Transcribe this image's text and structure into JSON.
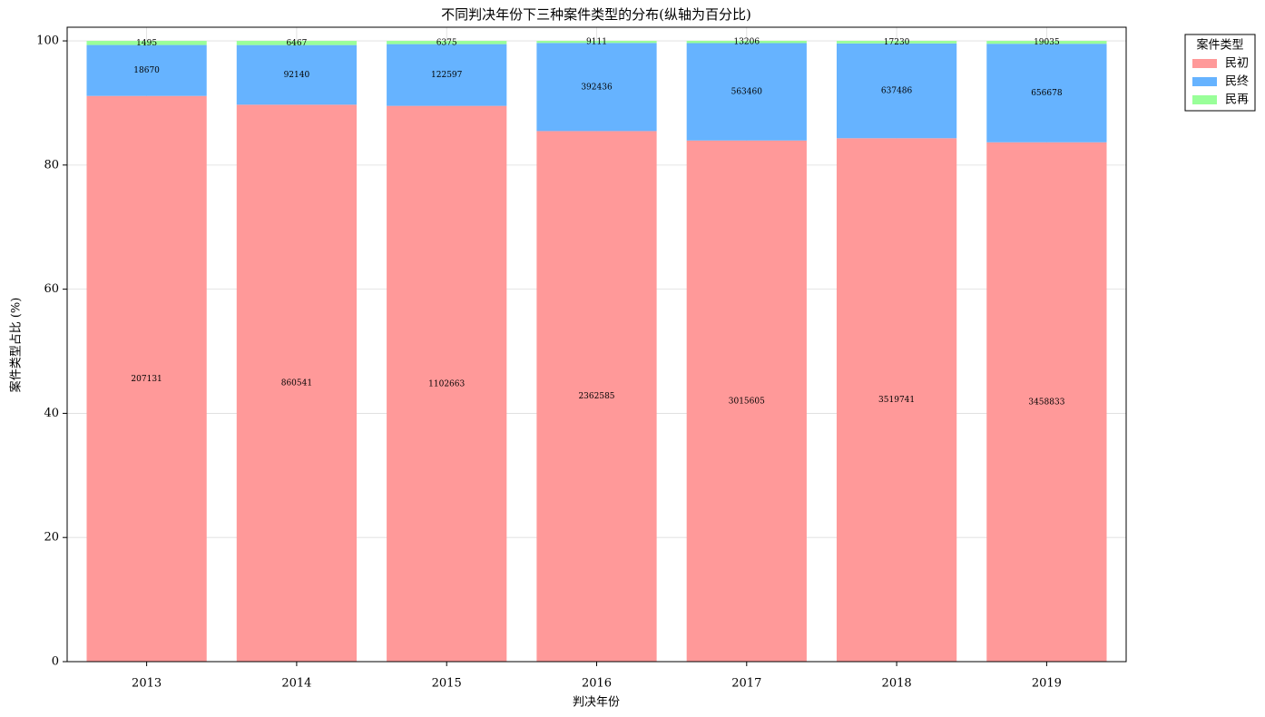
{
  "chart_data": {
    "type": "stacked_bar",
    "title": "不同判决年份下三种案件类型的分布(纵轴为百分比)",
    "xlabel": "判决年份",
    "ylabel": "案件类型占比 (%)",
    "categories": [
      "2013",
      "2014",
      "2015",
      "2016",
      "2017",
      "2018",
      "2019"
    ],
    "series": [
      {
        "name": "民初",
        "color": "#ff9999",
        "values": [
          91.13,
          89.72,
          89.53,
          85.47,
          83.95,
          84.32,
          83.66
        ],
        "counts": [
          207131,
          860541,
          1102663,
          2362585,
          3015605,
          3519741,
          3458833
        ]
      },
      {
        "name": "民终",
        "color": "#66b3ff",
        "values": [
          8.21,
          9.61,
          9.95,
          14.2,
          15.69,
          15.27,
          15.88
        ],
        "counts": [
          18670,
          92140,
          122597,
          392436,
          563460,
          637486,
          656678
        ]
      },
      {
        "name": "民再",
        "color": "#99ff99",
        "values": [
          0.66,
          0.67,
          0.52,
          0.33,
          0.37,
          0.41,
          0.46
        ],
        "counts": [
          1495,
          6467,
          6375,
          9111,
          13206,
          17230,
          19035
        ]
      }
    ],
    "legend_title": "案件类型",
    "legend": "outside upper right",
    "ylim": [
      0,
      102.2
    ],
    "yticks": [
      0,
      20,
      40,
      60,
      80,
      100
    ],
    "grid": true
  }
}
